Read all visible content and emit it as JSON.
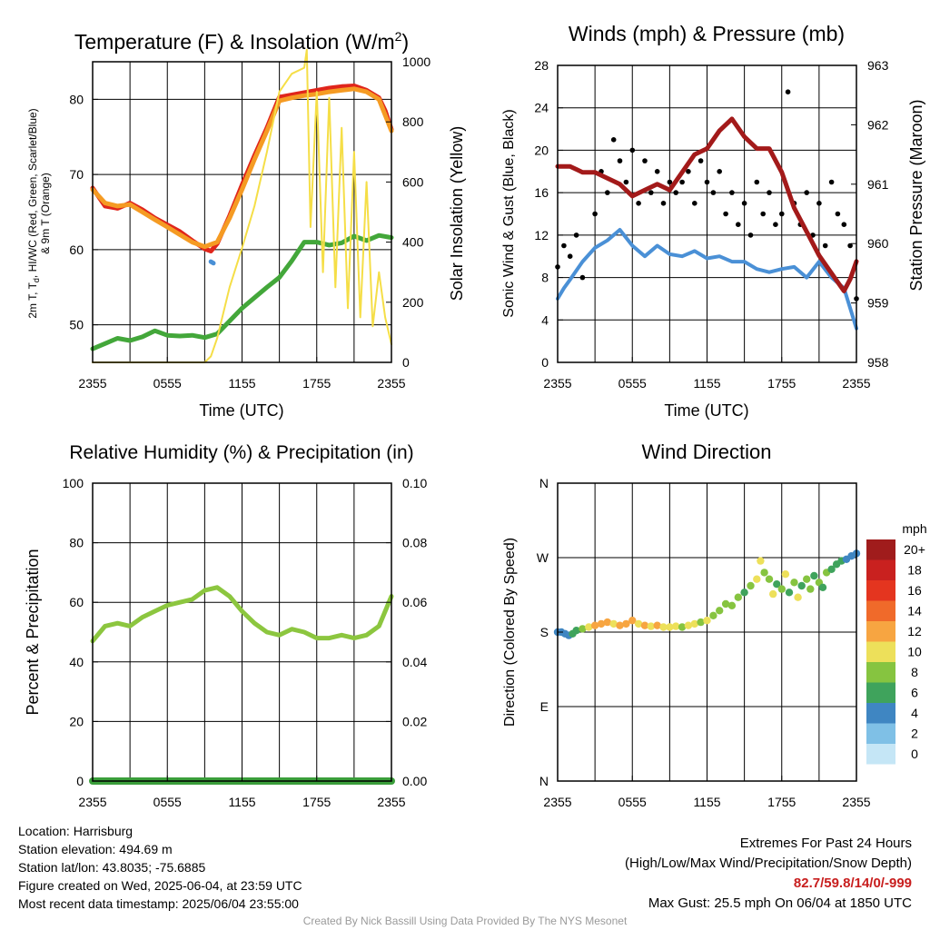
{
  "chart_data": [
    {
      "type": "line",
      "title": "Temperature (F) & Insolation (W/m²)",
      "xlabel": "Time (UTC)",
      "ylabel": "2m T, Td, HI/WC (Red, Green, Scarlet/Blue) & 9m T (Orange)",
      "y2label": "Solar Insolation (Yellow)",
      "x_ticks": [
        "2355",
        "0555",
        "1155",
        "1755",
        "2355"
      ],
      "x_range_hours": [
        0,
        24
      ],
      "ylim": [
        45,
        85
      ],
      "y_ticks": [
        50,
        60,
        70,
        80
      ],
      "y2lim": [
        0,
        1000
      ],
      "y2_ticks": [
        0,
        200,
        400,
        600,
        800,
        1000
      ],
      "grid": true,
      "series": [
        {
          "color": "#e0251b",
          "x": [
            0,
            1,
            2,
            3,
            4,
            5,
            6,
            7,
            8,
            9,
            9.5,
            10,
            11,
            12,
            13,
            14,
            15,
            16,
            17,
            18,
            19,
            20,
            21,
            22,
            23,
            23.5,
            24
          ],
          "values": [
            68.2,
            65.8,
            65.5,
            66.2,
            65.3,
            64.2,
            63.3,
            62.4,
            61.2,
            60.1,
            59.8,
            60.8,
            64.5,
            68.6,
            72.5,
            76.2,
            80.3,
            80.6,
            80.9,
            81.2,
            81.5,
            81.7,
            81.8,
            81.2,
            80.2,
            78.5,
            76.0
          ]
        },
        {
          "color": "#f59b23",
          "x": [
            0,
            1,
            2,
            3,
            4,
            5,
            6,
            7,
            8,
            9,
            10,
            11,
            12,
            13,
            14,
            15,
            16,
            17,
            18,
            19,
            20,
            21,
            22,
            23,
            24
          ],
          "values": [
            68.0,
            66.2,
            65.8,
            66.0,
            65.0,
            64.0,
            63.0,
            62.0,
            61.0,
            60.4,
            61.0,
            64.2,
            68.0,
            72.0,
            75.8,
            79.8,
            80.2,
            80.5,
            80.7,
            81.0,
            81.2,
            81.4,
            81.0,
            80.0,
            75.8
          ]
        },
        {
          "color": "#43a73a",
          "x": [
            0,
            1,
            2,
            3,
            4,
            5,
            6,
            7,
            8,
            9,
            10,
            11,
            12,
            13,
            14,
            15,
            16,
            17,
            18,
            19,
            20,
            21,
            22,
            23,
            24
          ],
          "values": [
            46.8,
            47.5,
            48.2,
            47.9,
            48.4,
            49.2,
            48.6,
            48.5,
            48.6,
            48.3,
            48.8,
            50.5,
            52.2,
            53.6,
            55.0,
            56.3,
            58.5,
            61.0,
            61.0,
            60.6,
            60.9,
            61.8,
            61.2,
            61.9,
            61.6
          ]
        },
        {
          "color": "#4a90d6",
          "x": [
            9.5,
            9.7
          ],
          "values": [
            58.4,
            58.2
          ]
        },
        {
          "color": "#f5de47",
          "axis": "y2",
          "x": [
            0,
            1,
            2,
            3,
            4,
            5,
            6,
            7,
            8,
            9,
            9.5,
            10,
            11,
            12,
            13,
            14,
            15,
            16,
            17,
            17.2,
            17.5,
            18,
            18.5,
            19,
            19.5,
            20,
            20.5,
            21,
            21.5,
            22,
            22.5,
            23,
            23.5,
            24
          ],
          "values": [
            0,
            0,
            0,
            0,
            0,
            0,
            0,
            0,
            0,
            0,
            20,
            80,
            250,
            380,
            520,
            700,
            900,
            960,
            980,
            1040,
            450,
            900,
            300,
            880,
            250,
            780,
            180,
            700,
            150,
            600,
            120,
            300,
            150,
            60
          ]
        }
      ]
    },
    {
      "type": "line",
      "title": "Winds (mph) & Pressure (mb)",
      "xlabel": "Time (UTC)",
      "ylabel": "Sonic Wind & Gust (Blue, Black)",
      "y2label": "Station Pressure (Maroon)",
      "x_ticks": [
        "2355",
        "0555",
        "1155",
        "1755",
        "2355"
      ],
      "x_range_hours": [
        0,
        24
      ],
      "ylim": [
        0,
        28
      ],
      "y_ticks": [
        0,
        4,
        8,
        12,
        16,
        20,
        24,
        28
      ],
      "y2lim": [
        958,
        963
      ],
      "y2_ticks": [
        958,
        959,
        960,
        961,
        962,
        963
      ],
      "grid": true,
      "series": [
        {
          "color": "#4a90d6",
          "x": [
            0,
            0.5,
            1,
            2,
            3,
            4,
            5,
            6,
            7,
            8,
            9,
            10,
            11,
            12,
            13,
            14,
            15,
            16,
            17,
            18,
            19,
            20,
            21,
            22,
            23,
            24
          ],
          "values": [
            6.0,
            7.0,
            7.8,
            9.5,
            10.8,
            11.5,
            12.5,
            11.0,
            10.0,
            11.0,
            10.2,
            10.0,
            10.5,
            9.8,
            10.0,
            9.5,
            9.5,
            8.8,
            8.5,
            8.8,
            9.0,
            8.0,
            9.5,
            8.0,
            7.0,
            3.2
          ]
        },
        {
          "color": "#000000",
          "markers": true,
          "x": [
            0,
            0.5,
            1,
            1.5,
            2,
            3,
            3.5,
            4,
            4.5,
            5,
            5.5,
            6,
            6.5,
            7,
            7.5,
            8,
            8.5,
            9,
            9.5,
            10,
            10.5,
            11,
            11.5,
            12,
            12.5,
            13,
            13.5,
            14,
            14.5,
            15,
            15.5,
            16,
            16.5,
            17,
            17.5,
            18,
            18.5,
            19,
            19.5,
            20,
            20.5,
            21,
            21.5,
            22,
            22.5,
            23,
            23.5,
            24
          ],
          "values": [
            9,
            11,
            10,
            12,
            8,
            14,
            18,
            16,
            21,
            19,
            17,
            20,
            15,
            19,
            16,
            18,
            15,
            17,
            16,
            17,
            18,
            15,
            19,
            17,
            16,
            18,
            14,
            16,
            13,
            15,
            12,
            17,
            14,
            16,
            13,
            14,
            25.5,
            15,
            13,
            16,
            12,
            15,
            11,
            17,
            14,
            13,
            11,
            6
          ]
        },
        {
          "color": "#a31a1a",
          "axis": "y2",
          "x": [
            0,
            1,
            2,
            3,
            4,
            5,
            6,
            7,
            8,
            9,
            10,
            11,
            12,
            13,
            14,
            15,
            16,
            17,
            18,
            19,
            20,
            21,
            22,
            23,
            23.5,
            24
          ],
          "values": [
            961.3,
            961.3,
            961.2,
            961.2,
            961.1,
            961.0,
            960.8,
            960.9,
            961.0,
            960.9,
            961.2,
            961.5,
            961.6,
            961.9,
            962.1,
            961.8,
            961.6,
            961.6,
            961.2,
            960.6,
            960.2,
            959.8,
            959.5,
            959.2,
            959.4,
            959.7
          ]
        }
      ]
    },
    {
      "type": "line",
      "title": "Relative Humidity (%) & Precipitation (in)",
      "xlabel": "",
      "ylabel": "Percent & Precipitation",
      "x_ticks": [
        "2355",
        "0555",
        "1155",
        "1755",
        "2355"
      ],
      "x_range_hours": [
        0,
        24
      ],
      "ylim": [
        0,
        100
      ],
      "y_ticks": [
        0,
        20,
        40,
        60,
        80,
        100
      ],
      "y2lim": [
        0,
        0.1
      ],
      "y2_ticks": [
        "0.00",
        "0.02",
        "0.04",
        "0.06",
        "0.08",
        "0.10"
      ],
      "grid": true,
      "series": [
        {
          "color": "#8cc63f",
          "x": [
            0,
            1,
            2,
            3,
            4,
            5,
            6,
            7,
            8,
            9,
            10,
            11,
            12,
            13,
            14,
            15,
            16,
            17,
            18,
            19,
            20,
            21,
            22,
            23,
            24
          ],
          "values": [
            47,
            52,
            53,
            52,
            55,
            57,
            59,
            60,
            61,
            64,
            65,
            62,
            57,
            53,
            50,
            49,
            51,
            50,
            48,
            48,
            49,
            48,
            49,
            52,
            62
          ]
        },
        {
          "color": "#3a9e3a",
          "x": [
            0,
            24
          ],
          "values": [
            0,
            0
          ]
        }
      ]
    },
    {
      "type": "scatter",
      "title": "Wind Direction",
      "ylabel": "Direction (Colored By Speed)",
      "x_ticks": [
        "2355",
        "0555",
        "1155",
        "1755",
        "2355"
      ],
      "x_range_hours": [
        0,
        24
      ],
      "y_ticks": [
        "N",
        "E",
        "S",
        "W",
        "N"
      ],
      "y_range_degrees": [
        0,
        360
      ],
      "grid": true,
      "legend_title": "mph",
      "legend_labels": [
        "20+",
        "18",
        "16",
        "14",
        "12",
        "10",
        "8",
        "6",
        "4",
        "2",
        "0"
      ],
      "legend_colors": [
        "#a01c1c",
        "#c9211f",
        "#e4351f",
        "#f06a2a",
        "#f7a541",
        "#ede05a",
        "#86c440",
        "#3fa35c",
        "#3f86c2",
        "#7fc0e6",
        "#c5e6f6"
      ],
      "points": [
        {
          "x": 0.0,
          "dir": 180,
          "spd": 5
        },
        {
          "x": 0.3,
          "dir": 180,
          "spd": 5
        },
        {
          "x": 0.6,
          "dir": 178,
          "spd": 4
        },
        {
          "x": 0.9,
          "dir": 176,
          "spd": 5
        },
        {
          "x": 1.2,
          "dir": 178,
          "spd": 6
        },
        {
          "x": 1.5,
          "dir": 182,
          "spd": 7
        },
        {
          "x": 2.0,
          "dir": 184,
          "spd": 8
        },
        {
          "x": 2.5,
          "dir": 186,
          "spd": 10
        },
        {
          "x": 3.0,
          "dir": 188,
          "spd": 12
        },
        {
          "x": 3.5,
          "dir": 190,
          "spd": 13
        },
        {
          "x": 4.0,
          "dir": 192,
          "spd": 12
        },
        {
          "x": 4.5,
          "dir": 190,
          "spd": 11
        },
        {
          "x": 5.0,
          "dir": 188,
          "spd": 12
        },
        {
          "x": 5.5,
          "dir": 190,
          "spd": 13
        },
        {
          "x": 6.0,
          "dir": 194,
          "spd": 12
        },
        {
          "x": 6.5,
          "dir": 190,
          "spd": 11
        },
        {
          "x": 7.0,
          "dir": 188,
          "spd": 12
        },
        {
          "x": 7.5,
          "dir": 187,
          "spd": 11
        },
        {
          "x": 8.0,
          "dir": 188,
          "spd": 12
        },
        {
          "x": 8.5,
          "dir": 186,
          "spd": 10
        },
        {
          "x": 9.0,
          "dir": 186,
          "spd": 10
        },
        {
          "x": 9.5,
          "dir": 187,
          "spd": 10
        },
        {
          "x": 10.0,
          "dir": 186,
          "spd": 9
        },
        {
          "x": 10.5,
          "dir": 188,
          "spd": 10
        },
        {
          "x": 11.0,
          "dir": 190,
          "spd": 10
        },
        {
          "x": 11.5,
          "dir": 192,
          "spd": 9
        },
        {
          "x": 12.0,
          "dir": 194,
          "spd": 10
        },
        {
          "x": 12.5,
          "dir": 200,
          "spd": 9
        },
        {
          "x": 13.0,
          "dir": 206,
          "spd": 8
        },
        {
          "x": 13.5,
          "dir": 214,
          "spd": 8
        },
        {
          "x": 14.0,
          "dir": 212,
          "spd": 9
        },
        {
          "x": 14.5,
          "dir": 222,
          "spd": 8
        },
        {
          "x": 15.0,
          "dir": 228,
          "spd": 7
        },
        {
          "x": 15.5,
          "dir": 236,
          "spd": 9
        },
        {
          "x": 16.0,
          "dir": 244,
          "spd": 10
        },
        {
          "x": 16.3,
          "dir": 266,
          "spd": 10
        },
        {
          "x": 16.6,
          "dir": 252,
          "spd": 8
        },
        {
          "x": 17.0,
          "dir": 244,
          "spd": 9
        },
        {
          "x": 17.3,
          "dir": 226,
          "spd": 10
        },
        {
          "x": 17.6,
          "dir": 238,
          "spd": 7
        },
        {
          "x": 18.0,
          "dir": 232,
          "spd": 8
        },
        {
          "x": 18.3,
          "dir": 250,
          "spd": 10
        },
        {
          "x": 18.6,
          "dir": 228,
          "spd": 6
        },
        {
          "x": 19.0,
          "dir": 240,
          "spd": 8
        },
        {
          "x": 19.3,
          "dir": 222,
          "spd": 10
        },
        {
          "x": 19.6,
          "dir": 236,
          "spd": 7
        },
        {
          "x": 20.0,
          "dir": 244,
          "spd": 9
        },
        {
          "x": 20.3,
          "dir": 232,
          "spd": 8
        },
        {
          "x": 20.6,
          "dir": 248,
          "spd": 6
        },
        {
          "x": 21.0,
          "dir": 240,
          "spd": 9
        },
        {
          "x": 21.3,
          "dir": 234,
          "spd": 7
        },
        {
          "x": 21.6,
          "dir": 252,
          "spd": 8
        },
        {
          "x": 22.0,
          "dir": 256,
          "spd": 6
        },
        {
          "x": 22.4,
          "dir": 262,
          "spd": 7
        },
        {
          "x": 22.8,
          "dir": 266,
          "spd": 6
        },
        {
          "x": 23.2,
          "dir": 268,
          "spd": 5
        },
        {
          "x": 23.6,
          "dir": 272,
          "spd": 4
        },
        {
          "x": 24.0,
          "dir": 275,
          "spd": 4
        }
      ]
    }
  ],
  "panel_titles": {
    "temp_main": "Temperature (F) & Insolation (W/m",
    "temp_sup": "2",
    "temp_close": ")",
    "wind": "Winds (mph) & Pressure (mb)",
    "rh": "Relative Humidity (%) & Precipitation (in)",
    "dir": "Wind Direction"
  },
  "axis_labels": {
    "time": "Time (UTC)",
    "temp_y_line1": "2m T, T",
    "temp_y_sub": "d",
    "temp_y_line1_rest": ", HI/WC (Red, Green, Scarlet/Blue)",
    "temp_y_line2": "& 9m T (Orange)",
    "temp_y2": "Solar Insolation (Yellow)",
    "wind_y": "Sonic Wind & Gust (Blue, Black)",
    "wind_y2": "Station Pressure (Maroon)",
    "rh_y": "Percent & Precipitation",
    "dir_y": "Direction (Colored By Speed)",
    "legend_title": "mph"
  },
  "station_info": {
    "location": "Location: Harrisburg",
    "elevation": "Station elevation: 494.69 m",
    "latlon": "Station lat/lon: 43.8035; -75.6885",
    "created": "Figure created on Wed, 2025-06-04, at 23:59 UTC",
    "timestamp": "Most recent data timestamp: 2025/06/04 23:55:00"
  },
  "extremes": {
    "title": "Extremes For Past 24 Hours",
    "subtitle": "(High/Low/Max Wind/Precipitation/Snow Depth)",
    "values": "82.7/59.8/14/0/-999",
    "max_gust": "Max Gust: 25.5 mph On 06/04 at 1850 UTC"
  },
  "credit": "Created By Nick Bassill Using Data Provided By The NYS Mesonet"
}
